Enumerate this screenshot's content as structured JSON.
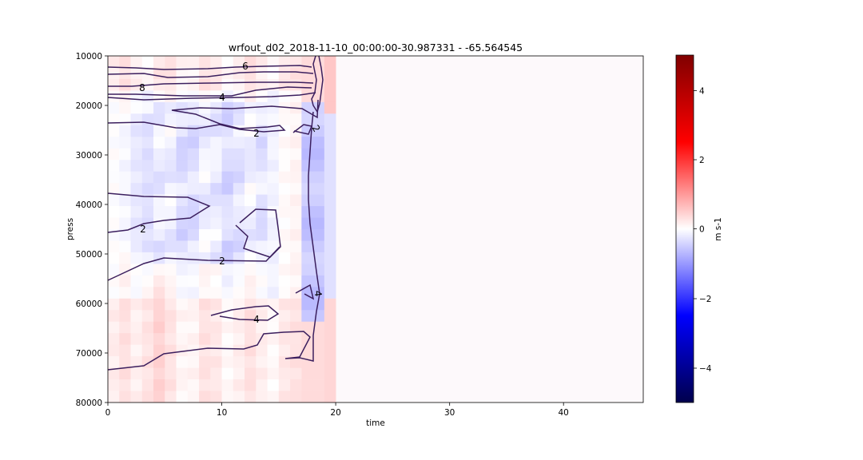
{
  "chart_data": {
    "type": "heatmap",
    "title": "wrfout_d02_2018-11-10_00:00:00-30.987331 - -65.564545",
    "xlabel": "time",
    "ylabel": "press",
    "xlim": [
      0,
      47
    ],
    "ylim": [
      80000,
      10000
    ],
    "x_ticks": [
      "0",
      "10",
      "20",
      "30",
      "40"
    ],
    "y_ticks": [
      "10000",
      "20000",
      "30000",
      "40000",
      "50000",
      "60000",
      "70000",
      "80000"
    ],
    "colorbar": {
      "label": "m s-1",
      "range": [
        -5,
        5
      ],
      "colormap": "seismic",
      "ticks": [
        "4",
        "2",
        "0",
        "−2",
        "−4"
      ]
    },
    "contour_color": "#3b1f5e",
    "contour_labels": [
      "6",
      "8",
      "4",
      "2",
      "2",
      "2",
      "2",
      "4",
      "4"
    ],
    "data_time_range": [
      0,
      20
    ]
  }
}
